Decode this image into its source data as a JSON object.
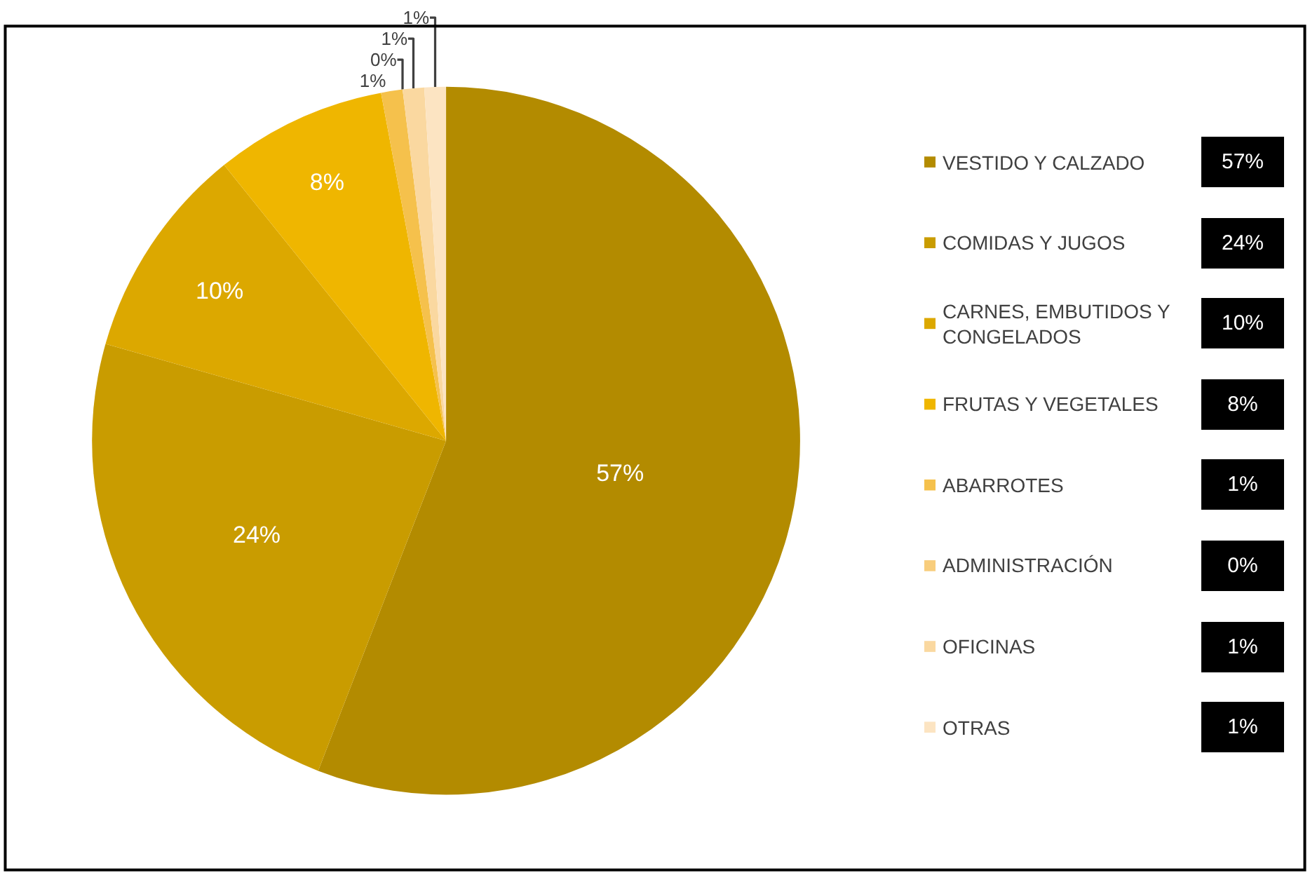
{
  "chart_data": {
    "type": "pie",
    "categories": [
      "VESTIDO Y CALZADO",
      "COMIDAS Y JUGOS",
      "CARNES, EMBUTIDOS Y CONGELADOS",
      "FRUTAS Y VEGETALES",
      "ABARROTES",
      "ADMINISTRACIÓN",
      "OFICINAS",
      "OTRAS"
    ],
    "values": [
      57,
      24,
      10,
      8,
      1,
      0,
      1,
      1
    ],
    "value_labels": [
      "57%",
      "24%",
      "10%",
      "8%",
      "1%",
      "0%",
      "1%",
      "1%"
    ],
    "colors": [
      "#b38b00",
      "#c99c00",
      "#dca800",
      "#efb600",
      "#f5c14c",
      "#f8cd7c",
      "#fad8a0",
      "#fce4c2"
    ],
    "legend": "right"
  }
}
